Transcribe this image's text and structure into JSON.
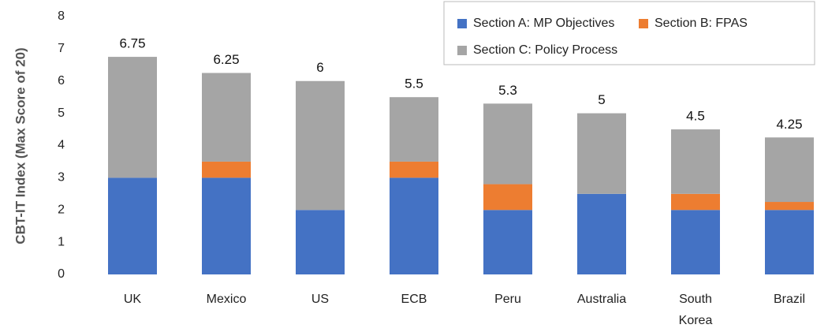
{
  "chart_data": {
    "type": "stacked_bar",
    "y_label": "CBT-IT Index (Max Score of 20)",
    "categories": [
      "UK",
      "Mexico",
      "US",
      "ECB",
      "Peru",
      "Australia",
      "South Korea",
      "Brazil"
    ],
    "series": [
      {
        "name": "Section A: MP Objectives",
        "color": "#4472c4",
        "values": [
          3,
          3,
          2,
          3,
          2,
          2.5,
          2,
          2
        ]
      },
      {
        "name": "Section B: FPAS",
        "color": "#ed7d31",
        "values": [
          0,
          0.5,
          0,
          0.5,
          0.8,
          0,
          0.5,
          0.25
        ]
      },
      {
        "name": "Section C: Policy Process",
        "color": "#a5a5a5",
        "values": [
          3.75,
          2.75,
          4,
          2,
          2.5,
          2.5,
          2,
          2
        ]
      }
    ],
    "totals": [
      6.75,
      6.25,
      6,
      5.5,
      5.3,
      5,
      4.5,
      4.25
    ],
    "ylim": [
      0,
      8
    ],
    "yticks": [
      0,
      1,
      2,
      3,
      4,
      5,
      6,
      7,
      8
    ],
    "grid": false,
    "legend": "top-right"
  }
}
